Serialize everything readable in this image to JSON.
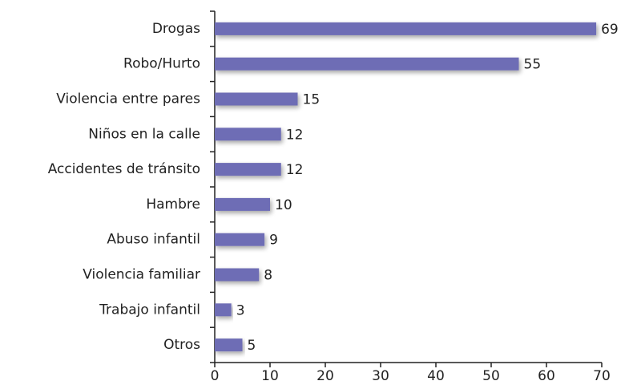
{
  "chart_data": {
    "type": "bar",
    "orientation": "horizontal",
    "categories": [
      "Drogas",
      "Robo/Hurto",
      "Violencia entre pares",
      "Niños en la calle",
      "Accidentes de tránsito",
      "Hambre",
      "Abuso infantil",
      "Violencia familiar",
      "Trabajo infantil",
      "Otros"
    ],
    "values": [
      69,
      55,
      15,
      12,
      12,
      10,
      9,
      8,
      3,
      5
    ],
    "color": "#6e6db5",
    "xlim": [
      0,
      70
    ],
    "xticks": [
      0,
      10,
      20,
      30,
      40,
      50,
      60,
      70
    ]
  }
}
